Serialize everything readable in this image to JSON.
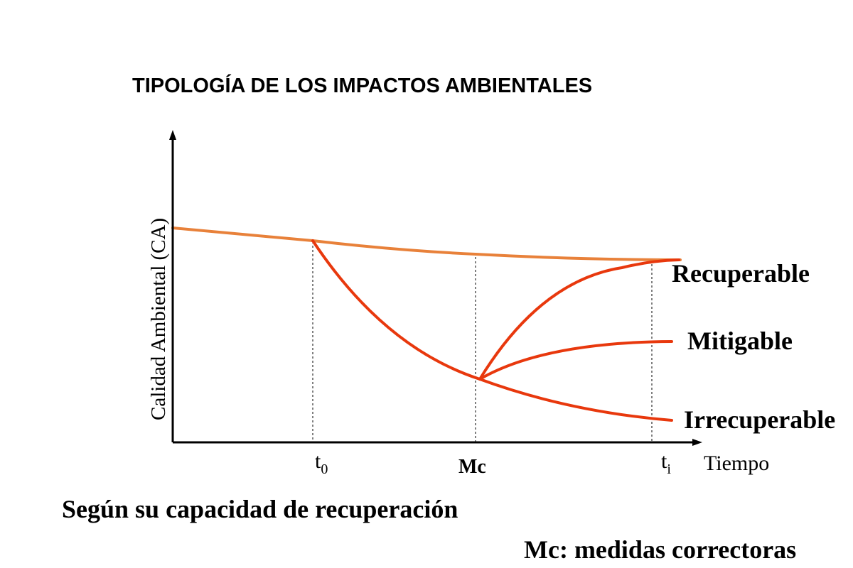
{
  "title": "TIPOLOGÍA DE LOS IMPACTOS AMBIENTALES",
  "subtitle": "Según su capacidad de recuperación",
  "footnote": "Mc: medidas correctoras",
  "axes": {
    "y_label": "Calidad Ambiental (CA)",
    "x_label": "Tiempo"
  },
  "ticks": {
    "t0": {
      "base": "t",
      "sub": "0"
    },
    "mc": "Mc",
    "ti": {
      "base": "t",
      "sub": "i"
    }
  },
  "curves": {
    "recuperable": "Recuperable",
    "mitigable": "Mitigable",
    "irrecuperable": "Irrecuperable"
  },
  "colors": {
    "baseline": "#E8813A",
    "impact": "#E8380D",
    "axis": "#000000",
    "text": "#000000"
  }
}
